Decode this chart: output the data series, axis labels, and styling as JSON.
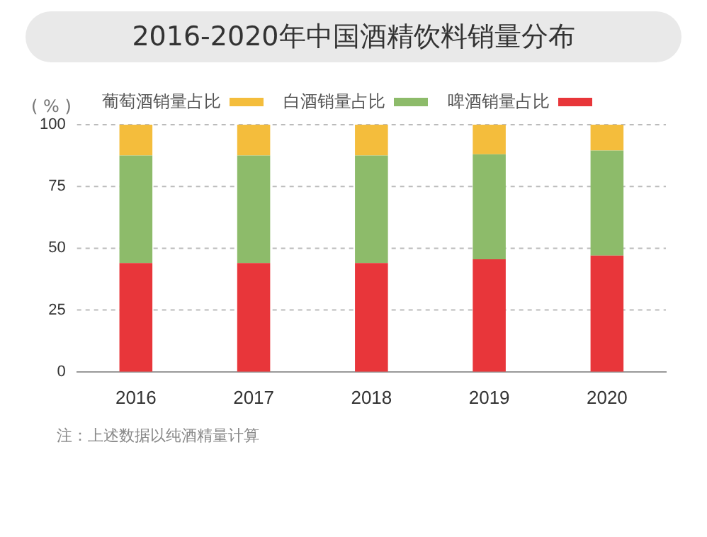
{
  "chart_data": {
    "type": "bar",
    "title": "2016-2020年中国酒精饮料销量分布",
    "ylabel": "( % )",
    "categories": [
      "2016",
      "2017",
      "2018",
      "2019",
      "2020"
    ],
    "series": [
      {
        "name": "啤酒销量占比",
        "color": "#e8363a",
        "values": [
          44,
          44,
          44,
          45.5,
          47
        ]
      },
      {
        "name": "白酒销量占比",
        "color": "#8dbb6a",
        "values": [
          43.5,
          43.5,
          43.5,
          42.5,
          42.5
        ]
      },
      {
        "name": "葡萄酒销量占比",
        "color": "#f4bd3c",
        "values": [
          12.5,
          12.5,
          12.5,
          12,
          10.5
        ]
      }
    ],
    "stacked": true,
    "ylim": [
      0,
      100
    ],
    "yticks": [
      0,
      25,
      50,
      75,
      100
    ],
    "grid": "y",
    "legend": "top",
    "annotations": [
      "注：上述数据以纯酒精量计算"
    ]
  }
}
